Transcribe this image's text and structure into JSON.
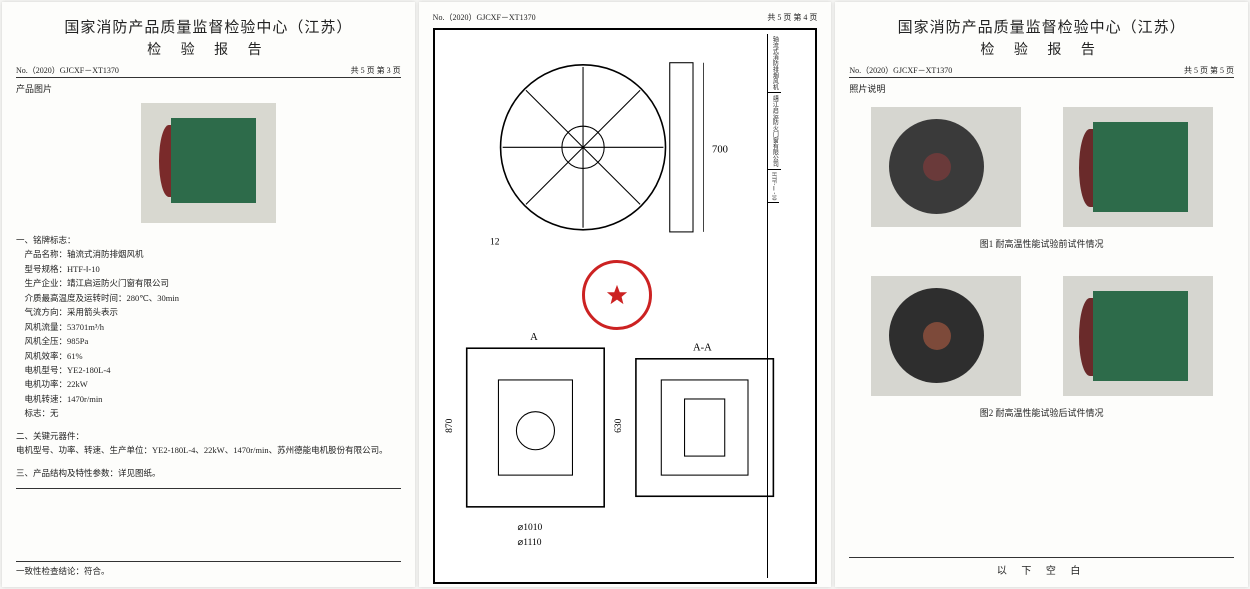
{
  "doc_no": "No.（2020）GJCXF－XT1370",
  "org_title": "国家消防产品质量监督检验中心（江苏）",
  "report_title": "检 验 报 告",
  "page3": {
    "pager": "共 5 页 第 3 页",
    "section_photo": "产品图片",
    "section_nameplate": "一、铭牌标志：",
    "rows": [
      {
        "k": "产品名称：",
        "v": "轴流式消防排烟风机"
      },
      {
        "k": "型号规格：",
        "v": "HTF-Ⅰ-10"
      },
      {
        "k": "生产企业：",
        "v": "靖江启运防火门窗有限公司"
      },
      {
        "k": "介质最高温度及运转时间：",
        "v": "280℃、30min"
      },
      {
        "k": "气流方向：",
        "v": "采用箭头表示"
      },
      {
        "k": "风机流量：",
        "v": "53701m³/h"
      },
      {
        "k": "风机全压：",
        "v": "985Pa"
      },
      {
        "k": "风机效率：",
        "v": "61%"
      },
      {
        "k": "电机型号：",
        "v": "YE2-180L-4"
      },
      {
        "k": "电机功率：",
        "v": "22kW"
      },
      {
        "k": "电机转速：",
        "v": "1470r/min"
      },
      {
        "k": "标志：",
        "v": "无"
      }
    ],
    "section_key": "二、关键元器件：",
    "key_text": "电机型号、功率、转速、生产单位：YE2-180L-4、22kW、1470r/min、苏州德能电机股份有限公司。",
    "section_struct": "三、产品结构及特性参数：详见图纸。",
    "conclusion": "一致性检查结论：符合。"
  },
  "page4": {
    "pager": "共 5 页 第 4 页",
    "dims": {
      "d_outer": "⌀1110",
      "d_inner": "⌀1010",
      "h1": "870",
      "h2": "630",
      "w": "700",
      "r": "12"
    },
    "section_labels": [
      "A",
      "A-A",
      "↙"
    ],
    "titleblock": [
      "轴流式消防排烟风机",
      "靖江启运防火门窗有限公司",
      "HTF-Ⅰ-10"
    ]
  },
  "page5": {
    "pager": "共 5 页 第 5 页",
    "section_photo": "照片说明",
    "cap1": "图1 耐高温性能试验前试件情况",
    "cap2": "图2 耐高温性能试验后试件情况",
    "blank": "以 下 空 白"
  },
  "colors": {
    "fan_green": "#2d6b4a",
    "fan_red": "#7a2a2a",
    "stamp_red": "#c22222",
    "paper": "#fdfdfb"
  }
}
